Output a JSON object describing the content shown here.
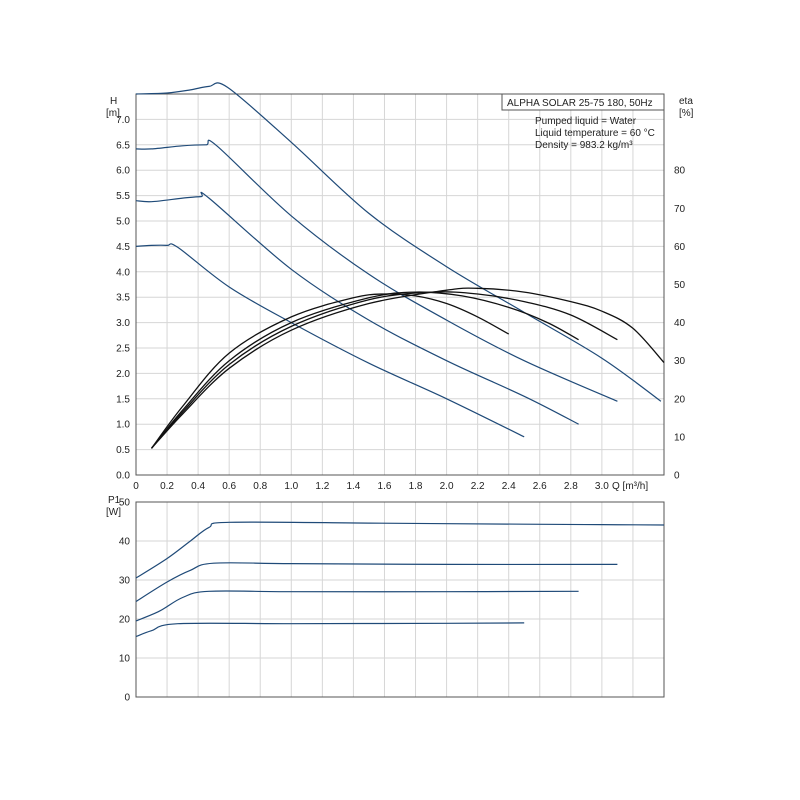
{
  "chart_data": [
    {
      "type": "line",
      "title": "ALPHA SOLAR 25-75 180, 50Hz",
      "annotations": [
        "Pumped liquid = Water",
        "Liquid temperature = 60 °C",
        "Density = 983.2 kg/m³"
      ],
      "xlabel": "Q [m³/h]",
      "ylabel": "H",
      "ylabel_unit": "[m]",
      "y2label": "eta",
      "y2label_unit": "[%]",
      "xlim": [
        0,
        3.4
      ],
      "ylim": [
        0,
        7.5
      ],
      "y2lim": [
        0,
        100
      ],
      "xticks": [
        "0",
        "0.2",
        "0.4",
        "0.6",
        "0.8",
        "1.0",
        "1.2",
        "1.4",
        "1.6",
        "1.8",
        "2.0",
        "2.2",
        "2.4",
        "2.6",
        "2.8",
        "3.0"
      ],
      "xtick_values": [
        0,
        0.2,
        0.4,
        0.6,
        0.8,
        1.0,
        1.2,
        1.4,
        1.6,
        1.8,
        2.0,
        2.2,
        2.4,
        2.6,
        2.8,
        3.0
      ],
      "yticks": [
        "0.0",
        "0.5",
        "1.0",
        "1.5",
        "2.0",
        "2.5",
        "3.0",
        "3.5",
        "4.0",
        "4.5",
        "5.0",
        "5.5",
        "6.0",
        "6.5",
        "7.0"
      ],
      "ytick_values": [
        0,
        0.5,
        1.0,
        1.5,
        2.0,
        2.5,
        3.0,
        3.5,
        4.0,
        4.5,
        5.0,
        5.5,
        6.0,
        6.5,
        7.0
      ],
      "y2ticks": [
        "0",
        "10",
        "20",
        "30",
        "40",
        "50",
        "60",
        "70",
        "80"
      ],
      "y2tick_values": [
        0,
        10,
        20,
        30,
        40,
        50,
        60,
        70,
        80
      ],
      "grid": true,
      "head_series": [
        {
          "x": [
            0,
            0.2,
            0.35,
            0.47,
            0.59,
            1.0,
            1.5,
            2.0,
            2.5,
            3.0,
            3.38
          ],
          "y": [
            7.5,
            7.52,
            7.58,
            7.65,
            7.63,
            6.55,
            5.15,
            4.1,
            3.2,
            2.3,
            1.45
          ]
        },
        {
          "x": [
            0,
            0.1,
            0.3,
            0.45,
            0.52,
            1.0,
            1.5,
            2.0,
            2.5,
            3.1
          ],
          "y": [
            6.42,
            6.42,
            6.48,
            6.5,
            6.48,
            5.1,
            3.95,
            3.05,
            2.25,
            1.45
          ]
        },
        {
          "x": [
            0,
            0.1,
            0.3,
            0.42,
            0.47,
            1.0,
            1.5,
            2.0,
            2.5,
            2.85
          ],
          "y": [
            5.4,
            5.38,
            5.45,
            5.48,
            5.45,
            4.05,
            3.05,
            2.25,
            1.55,
            1.0
          ]
        },
        {
          "x": [
            0,
            0.1,
            0.2,
            0.27,
            0.6,
            1.0,
            1.5,
            2.0,
            2.5
          ],
          "y": [
            4.5,
            4.52,
            4.52,
            4.48,
            3.7,
            3.0,
            2.2,
            1.5,
            0.75
          ]
        }
      ],
      "eta_series": [
        {
          "x": [
            0.1,
            0.3,
            0.6,
            1.0,
            1.5,
            2.0,
            2.2,
            2.5,
            2.8,
            3.0,
            3.2,
            3.4
          ],
          "y": [
            7,
            16,
            28,
            38,
            45,
            48.5,
            49,
            48,
            45.5,
            43,
            38.5,
            29.5
          ]
        },
        {
          "x": [
            0.1,
            0.3,
            0.6,
            1.0,
            1.5,
            1.9,
            2.2,
            2.5,
            2.8,
            3.1
          ],
          "y": [
            7,
            16.5,
            29,
            39,
            46,
            48,
            47.5,
            45.5,
            42,
            35.5
          ]
        },
        {
          "x": [
            0.1,
            0.3,
            0.6,
            1.0,
            1.5,
            1.8,
            2.1,
            2.4,
            2.65,
            2.85
          ],
          "y": [
            7,
            17,
            30,
            40,
            46.5,
            48,
            47,
            44,
            40,
            35.5
          ]
        },
        {
          "x": [
            0.1,
            0.3,
            0.6,
            1.0,
            1.4,
            1.6,
            1.8,
            2.0,
            2.2,
            2.4
          ],
          "y": [
            7,
            18,
            32,
            41.5,
            46.5,
            47.5,
            47,
            45,
            41.5,
            37
          ]
        }
      ]
    },
    {
      "type": "line",
      "ylabel": "P1",
      "ylabel_unit": "[W]",
      "xlim": [
        0,
        3.4
      ],
      "ylim": [
        0,
        50
      ],
      "yticks": [
        "0",
        "10",
        "20",
        "30",
        "40",
        "50"
      ],
      "ytick_values": [
        0,
        10,
        20,
        30,
        40,
        50
      ],
      "grid": true,
      "series": [
        {
          "x": [
            0,
            0.2,
            0.35,
            0.47,
            0.6,
            1.5,
            2.5,
            3.0,
            3.4
          ],
          "y": [
            30.5,
            35.5,
            40,
            43.5,
            44.8,
            44.6,
            44.3,
            44.2,
            44.1
          ]
        },
        {
          "x": [
            0,
            0.2,
            0.35,
            0.5,
            1.0,
            2.0,
            3.1
          ],
          "y": [
            24.5,
            29.5,
            32.5,
            34.3,
            34.2,
            34.0,
            34.0
          ]
        },
        {
          "x": [
            0,
            0.15,
            0.3,
            0.47,
            1.0,
            2.0,
            2.85
          ],
          "y": [
            19.5,
            22,
            25.5,
            27.1,
            27.0,
            27.0,
            27.1
          ]
        },
        {
          "x": [
            0,
            0.1,
            0.27,
            1.0,
            2.0,
            2.5
          ],
          "y": [
            15.5,
            17,
            18.8,
            18.8,
            18.9,
            19.0
          ]
        }
      ]
    }
  ],
  "colors": {
    "head_curve": "#1f4a78",
    "eta_curve": "#111111",
    "grid": "#d6d6d6",
    "frame": "#555555"
  }
}
